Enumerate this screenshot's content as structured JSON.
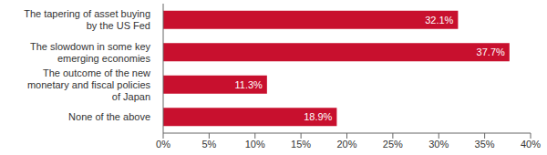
{
  "chart_data": {
    "type": "bar",
    "orientation": "horizontal",
    "categories": [
      "The tapering of asset buying by the US Fed",
      "The slowdown in some key emerging economies",
      "The outcome of the new monetary and fiscal policies of Japan",
      "None of the above"
    ],
    "values": [
      32.1,
      37.7,
      11.3,
      18.9
    ],
    "value_labels": [
      "32.1%",
      "37.7%",
      "11.3%",
      "18.9%"
    ],
    "color": "#c8102e",
    "xlim": [
      0,
      40
    ],
    "xticks": [
      {
        "value": 0,
        "label": "0%"
      },
      {
        "value": 5,
        "label": "5%"
      },
      {
        "value": 10,
        "label": "10%"
      },
      {
        "value": 15,
        "label": "15%"
      },
      {
        "value": 20,
        "label": "20%"
      },
      {
        "value": 25,
        "label": "25%"
      },
      {
        "value": 30,
        "label": "30%"
      },
      {
        "value": 35,
        "label": "35%"
      },
      {
        "value": 40,
        "label": "40%"
      }
    ],
    "grid": false,
    "data_labels": true
  }
}
